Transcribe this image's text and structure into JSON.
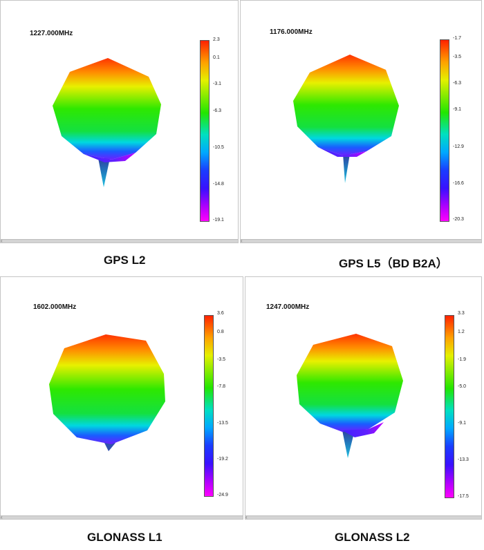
{
  "panels": [
    {
      "frequency": "1227.000MHz",
      "caption": "GPS L2",
      "colorbar": {
        "max": "2.3",
        "labels": [
          "2.3",
          "0.1",
          "-3.1",
          "-6.3",
          "-10.5",
          "-14.8",
          "-19.1"
        ]
      }
    },
    {
      "frequency": "1176.000MHz",
      "caption": "GPS L5（BD B2A）",
      "colorbar": {
        "max": "-1.7",
        "labels": [
          "-1.7",
          "-3.5",
          "-6.3",
          "-9.1",
          "-12.9",
          "-16.6",
          "-20.3"
        ]
      }
    },
    {
      "frequency": "1602.000MHz",
      "caption": "GLONASS L1",
      "colorbar": {
        "max": "3.6",
        "labels": [
          "3.6",
          "0.8",
          "-3.5",
          "-7.8",
          "-13.5",
          "-19.2",
          "-24.9"
        ]
      }
    },
    {
      "frequency": "1247.000MHz",
      "caption": "GLONASS L2",
      "colorbar": {
        "max": "3.3",
        "labels": [
          "3.3",
          "1.2",
          "-1.9",
          "-5.0",
          "-9.1",
          "-13.3",
          "-17.5"
        ]
      }
    }
  ],
  "colors": {
    "top": "#ff3a00",
    "mid": "#22e600",
    "bottom": "#1a3cff",
    "tip": "#b000ff"
  },
  "scroll_arrow": "‹"
}
